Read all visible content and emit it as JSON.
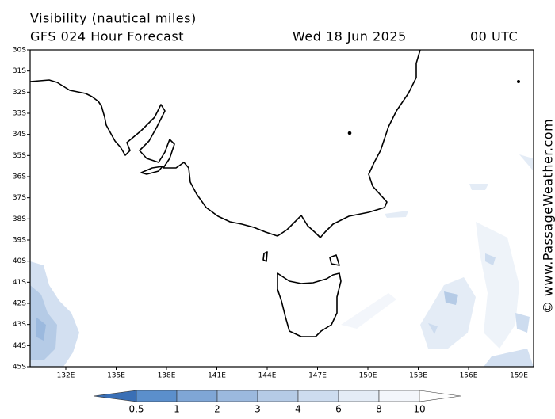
{
  "header": {
    "title": "Visibility (nautical miles)",
    "subtitle": "GFS 024 Hour Forecast",
    "date": "Wed 18 Jun 2025",
    "time": "00 UTC"
  },
  "map": {
    "lat_labels": [
      "30S",
      "31S",
      "32S",
      "33S",
      "34S",
      "35S",
      "36S",
      "37S",
      "38S",
      "39S",
      "40S",
      "41S",
      "42S",
      "43S",
      "44S",
      "45S"
    ],
    "lon_labels": [
      "132E",
      "135E",
      "138E",
      "141E",
      "144E",
      "147E",
      "150E",
      "153E",
      "156E",
      "159E"
    ],
    "credit": "© www.PassageWeather.com"
  },
  "colorbar": {
    "labels": [
      "0.5",
      "1",
      "2",
      "3",
      "4",
      "6",
      "8",
      "10"
    ]
  }
}
